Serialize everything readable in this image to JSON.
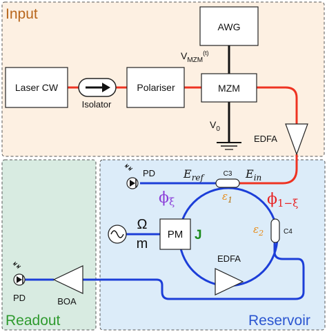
{
  "panels": {
    "input": {
      "title": "Input"
    },
    "readout": {
      "title": "Readout"
    },
    "reservoir": {
      "title": "Reservoir"
    }
  },
  "blocks": {
    "awg": "AWG",
    "laser": "Laser CW",
    "polariser": "Polariser",
    "mzm": "MZM",
    "pm": "PM",
    "isolator": "Isolator",
    "edfa_input": "EDFA",
    "edfa_loop": "EDFA",
    "boa": "BOA",
    "pd_reservoir": "PD",
    "pd_readout": "PD"
  },
  "labels": {
    "vmzm": {
      "main": "V",
      "sub": "MZM",
      "sup": "(t)"
    },
    "v0": {
      "main": "V",
      "sub": "0"
    },
    "e_ref": {
      "main": "E",
      "sub": "ref"
    },
    "e_in": {
      "main": "E",
      "sub": "in"
    },
    "c3": "C3",
    "c4": "C4",
    "eps1": {
      "main": "ε",
      "sub": "1"
    },
    "eps2": {
      "main": "ε",
      "sub": "2"
    },
    "phi_xi": {
      "main": "ϕ",
      "sub": "ξ"
    },
    "phi_1mxi": {
      "main": "ϕ",
      "sub": "1−ξ"
    },
    "omega": "Ω",
    "m": "m",
    "j": "J"
  },
  "colors": {
    "input_bg": "#fdf0e2",
    "input_title": "#b8661c",
    "readout_bg": "#d8ebe1",
    "readout_title": "#2e9a2e",
    "reservoir_bg": "#dcecf9",
    "reservoir_title": "#2a55d0",
    "red_fiber": "#ee3322",
    "blue_fiber": "#1c3ed8",
    "purple": "#8a3cd8",
    "orange_eps": "#e88a14",
    "red_phi": "#e82020",
    "green_j": "#1a8a1a"
  }
}
